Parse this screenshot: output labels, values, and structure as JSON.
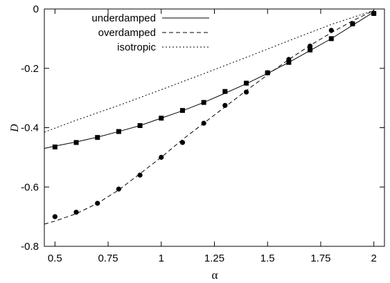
{
  "chart_data": {
    "type": "line",
    "title": "",
    "xlabel": "α",
    "ylabel": "D",
    "xlim": [
      0.45,
      2.05
    ],
    "ylim": [
      -0.8,
      0
    ],
    "xticks": [
      {
        "value": 0.5,
        "label": "0.5"
      },
      {
        "value": 0.75,
        "label": "0.75"
      },
      {
        "value": 1.0,
        "label": "1"
      },
      {
        "value": 1.25,
        "label": "1.25"
      },
      {
        "value": 1.5,
        "label": "1.5"
      },
      {
        "value": 1.75,
        "label": "1.75"
      },
      {
        "value": 2.0,
        "label": "2"
      }
    ],
    "yticks": [
      {
        "value": 0,
        "label": "0"
      },
      {
        "value": -0.2,
        "label": "-0.2"
      },
      {
        "value": -0.4,
        "label": "-0.4"
      },
      {
        "value": -0.6,
        "label": "-0.6"
      },
      {
        "value": -0.8,
        "label": "-0.8"
      }
    ],
    "grid": false,
    "legend_position": "top-left",
    "series": [
      {
        "name": "underdamped",
        "style": "solid",
        "x": [
          0.45,
          0.5,
          0.6,
          0.7,
          0.8,
          0.9,
          1.0,
          1.1,
          1.2,
          1.3,
          1.4,
          1.5,
          1.6,
          1.7,
          1.8,
          1.9,
          2.0
        ],
        "y": [
          -0.47,
          -0.462,
          -0.448,
          -0.432,
          -0.413,
          -0.393,
          -0.368,
          -0.343,
          -0.315,
          -0.284,
          -0.252,
          -0.217,
          -0.18,
          -0.14,
          -0.1,
          -0.055,
          -0.01
        ]
      },
      {
        "name": "overdamped",
        "style": "dashed",
        "x": [
          0.45,
          0.5,
          0.6,
          0.7,
          0.8,
          0.9,
          1.0,
          1.1,
          1.2,
          1.3,
          1.4,
          1.5,
          1.6,
          1.7,
          1.8,
          1.9,
          2.0
        ],
        "y": [
          -0.725,
          -0.715,
          -0.69,
          -0.655,
          -0.61,
          -0.555,
          -0.5,
          -0.44,
          -0.385,
          -0.33,
          -0.275,
          -0.222,
          -0.17,
          -0.123,
          -0.08,
          -0.04,
          -0.005
        ]
      },
      {
        "name": "isotropic",
        "style": "dotted",
        "x": [
          0.45,
          0.6,
          0.8,
          1.0,
          1.2,
          1.4,
          1.6,
          1.8,
          2.0
        ],
        "y": [
          -0.415,
          -0.375,
          -0.325,
          -0.272,
          -0.218,
          -0.163,
          -0.107,
          -0.052,
          -0.005
        ]
      }
    ],
    "markers": [
      {
        "name": "underdamped data",
        "shape": "square",
        "x": [
          0.5,
          0.6,
          0.7,
          0.8,
          0.9,
          1.0,
          1.1,
          1.2,
          1.3,
          1.4,
          1.5,
          1.6,
          1.7,
          1.8,
          1.9,
          2.0
        ],
        "y": [
          -0.465,
          -0.45,
          -0.433,
          -0.413,
          -0.393,
          -0.368,
          -0.342,
          -0.315,
          -0.278,
          -0.25,
          -0.215,
          -0.18,
          -0.138,
          -0.1,
          -0.05,
          -0.015
        ]
      },
      {
        "name": "overdamped data",
        "shape": "circle",
        "x": [
          0.5,
          0.6,
          0.7,
          0.8,
          0.9,
          1.0,
          1.1,
          1.2,
          1.3,
          1.4,
          1.5,
          1.6,
          1.7,
          1.8,
          1.9,
          2.0
        ],
        "y": [
          -0.7,
          -0.685,
          -0.655,
          -0.607,
          -0.56,
          -0.5,
          -0.45,
          -0.385,
          -0.325,
          -0.28,
          -0.215,
          -0.17,
          -0.125,
          -0.072,
          -0.05,
          -0.015
        ]
      }
    ]
  }
}
